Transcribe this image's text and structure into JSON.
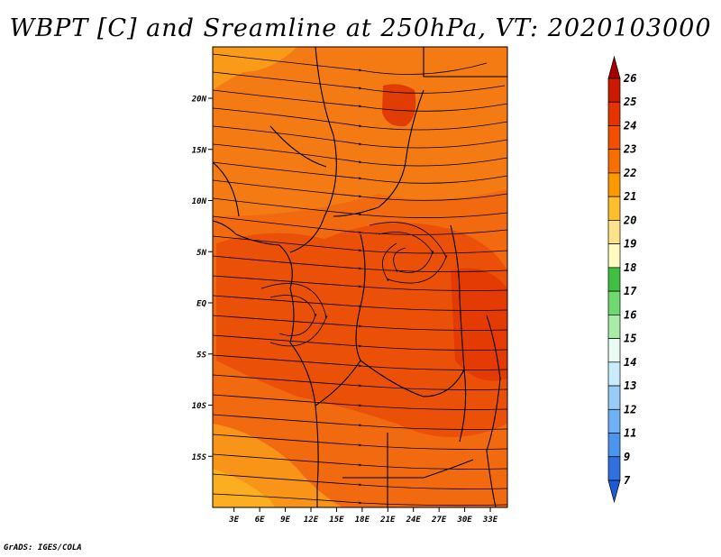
{
  "title": "WBPT [C] and Sreamline at 250hPa, VT: 2020103000",
  "credit": "GrADS: IGES/COLA",
  "map": {
    "lat_labels": [
      "20N",
      "15N",
      "10N",
      "5N",
      "EQ",
      "5S",
      "10S",
      "15S"
    ],
    "lat_values": [
      20,
      15,
      10,
      5,
      0,
      -5,
      -10,
      -15
    ],
    "lon_labels": [
      "3E",
      "6E",
      "9E",
      "12E",
      "15E",
      "18E",
      "21E",
      "24E",
      "27E",
      "30E",
      "33E"
    ],
    "lon_values": [
      3,
      6,
      9,
      12,
      15,
      18,
      21,
      24,
      27,
      30,
      33
    ]
  },
  "colorbar": {
    "labels": [
      "26",
      "25",
      "24",
      "23",
      "22",
      "21",
      "20",
      "19",
      "18",
      "17",
      "16",
      "15",
      "14",
      "13",
      "12",
      "11",
      "9",
      "7"
    ],
    "colors": [
      "#a50000",
      "#cc1a00",
      "#e43200",
      "#f25000",
      "#f57000",
      "#fb9a00",
      "#fcbe2c",
      "#fde28c",
      "#fffac0",
      "#40c040",
      "#70d870",
      "#a8eca8",
      "#e8fcf4",
      "#c8ecfc",
      "#98ccf8",
      "#6cb2f4",
      "#4a96ec",
      "#3070e0",
      "#1e5ad4"
    ]
  }
}
